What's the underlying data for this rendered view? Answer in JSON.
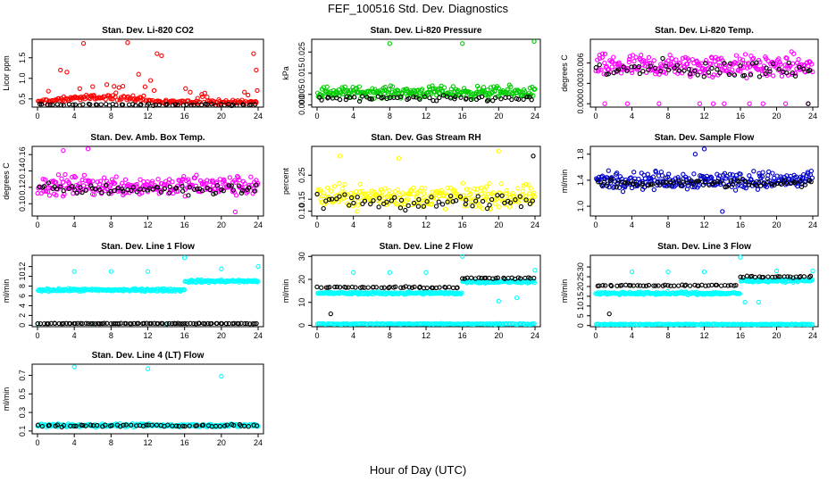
{
  "figure": {
    "title": "FEF_100516  Std. Dev. Diagnostics",
    "xlabel": "Hour of Day (UTC)"
  },
  "chart_data": [
    {
      "type": "scatter",
      "title": "Stan. Dev. Li-820 CO2",
      "ylabel": "Licor ppm",
      "xlim": [
        0,
        24
      ],
      "ylim": [
        0.3,
        1.95
      ],
      "xticks": [
        "0",
        "4",
        "8",
        "12",
        "16",
        "20",
        "24"
      ],
      "yticks": [
        {
          "v": 0.5,
          "t": "0.5"
        },
        {
          "v": 1.0,
          "t": "1.0"
        },
        {
          "v": 1.5,
          "t": "1.5"
        }
      ],
      "series": [
        {
          "color": "#ff0000",
          "base": 0.42,
          "spread": 0.08,
          "pattern": "hump",
          "density": 200,
          "outliers": [
            [
              5.0,
              1.85
            ],
            [
              9.8,
              1.87
            ],
            [
              13.5,
              1.55
            ],
            [
              23.5,
              1.6
            ],
            [
              2.5,
              1.2
            ],
            [
              3.2,
              1.15
            ],
            [
              11.0,
              1.1
            ],
            [
              12.3,
              0.95
            ],
            [
              6.0,
              0.8
            ],
            [
              4.6,
              0.75
            ],
            [
              23.8,
              1.2
            ],
            [
              13.0,
              1.6
            ]
          ]
        },
        {
          "color": "#000000",
          "base": 0.36,
          "spread": 0.03,
          "pattern": "flat",
          "density": 60,
          "outliers": []
        }
      ]
    },
    {
      "type": "scatter",
      "title": "Stan. Dev. Li-820 Pressure",
      "ylabel": "kPa",
      "xlim": [
        0,
        24
      ],
      "ylim": [
        -0.001,
        0.031
      ],
      "xticks": [
        "0",
        "4",
        "8",
        "12",
        "16",
        "20",
        "24"
      ],
      "yticks": [
        {
          "v": 0.0,
          "t": "0.000"
        },
        {
          "v": 0.005,
          "t": "0.005"
        },
        {
          "v": 0.015,
          "t": "0.015"
        },
        {
          "v": 0.025,
          "t": "0.025"
        }
      ],
      "series": [
        {
          "color": "#00cc00",
          "base": 0.006,
          "spread": 0.004,
          "pattern": "flat",
          "density": 260,
          "outliers": [
            [
              8.0,
              0.029
            ],
            [
              16.0,
              0.029
            ],
            [
              23.9,
              0.03
            ]
          ]
        },
        {
          "color": "#000000",
          "base": 0.003,
          "spread": 0.002,
          "pattern": "flat",
          "density": 60,
          "outliers": []
        }
      ]
    },
    {
      "type": "scatter",
      "title": "Stan. Dev. Li-820 Temp.",
      "ylabel": "degrees C",
      "xlim": [
        0,
        24
      ],
      "ylim": [
        -0.0005,
        0.0095
      ],
      "xticks": [
        "0",
        "4",
        "8",
        "12",
        "16",
        "20",
        "24"
      ],
      "yticks": [
        {
          "v": 0.0,
          "t": "0.000"
        },
        {
          "v": 0.003,
          "t": "0.003"
        },
        {
          "v": 0.006,
          "t": "0.006"
        }
      ],
      "series": [
        {
          "color": "#ff00ff",
          "base": 0.0055,
          "spread": 0.0025,
          "pattern": "flat",
          "density": 260,
          "outliers": [
            [
              1.0,
              0.0
            ],
            [
              3.5,
              0.0
            ],
            [
              7.0,
              0.0
            ],
            [
              11.5,
              0.0
            ],
            [
              13.0,
              0.0
            ],
            [
              14.2,
              0.0
            ],
            [
              17.0,
              0.0
            ],
            [
              18.5,
              0.0
            ],
            [
              21.0,
              0.0
            ],
            [
              23.5,
              0.0
            ]
          ]
        },
        {
          "color": "#000000",
          "base": 0.005,
          "spread": 0.002,
          "pattern": "flat",
          "density": 60,
          "outliers": [
            [
              23.5,
              0.0
            ]
          ]
        }
      ]
    },
    {
      "type": "scatter",
      "title": "Stan. Dev. Amb. Box Temp.",
      "ylabel": "degrees C",
      "xlim": [
        0,
        24
      ],
      "ylim": [
        0.085,
        0.17
      ],
      "xticks": [
        "0",
        "4",
        "8",
        "12",
        "16",
        "20",
        "24"
      ],
      "yticks": [
        {
          "v": 0.1,
          "t": "0.10"
        },
        {
          "v": 0.12,
          "t": "0.12"
        },
        {
          "v": 0.14,
          "t": "0.14"
        },
        {
          "v": 0.16,
          "t": "0.16"
        }
      ],
      "series": [
        {
          "color": "#ff00ff",
          "base": 0.122,
          "spread": 0.018,
          "pattern": "flat",
          "density": 260,
          "outliers": [
            [
              2.8,
              0.165
            ],
            [
              5.5,
              0.167
            ],
            [
              21.5,
              0.09
            ]
          ]
        },
        {
          "color": "#000000",
          "base": 0.118,
          "spread": 0.01,
          "pattern": "flat",
          "density": 70,
          "outliers": []
        }
      ]
    },
    {
      "type": "scatter",
      "title": "Stan. Dev. Gas Stream RH",
      "ylabel": "percent",
      "xlim": [
        0,
        24
      ],
      "ylim": [
        0.08,
        0.37
      ],
      "xticks": [
        "0",
        "4",
        "8",
        "12",
        "16",
        "20",
        "24"
      ],
      "yticks": [
        {
          "v": 0.1,
          "t": "0.10"
        },
        {
          "v": 0.15,
          "t": "0.15"
        },
        {
          "v": 0.25,
          "t": "0.25"
        }
      ],
      "series": [
        {
          "color": "#ffff00",
          "base": 0.16,
          "spread": 0.07,
          "pattern": "flat",
          "density": 260,
          "outliers": [
            [
              2.5,
              0.33
            ],
            [
              20.0,
              0.35
            ],
            [
              9.0,
              0.32
            ]
          ]
        },
        {
          "color": "#000000",
          "base": 0.14,
          "spread": 0.05,
          "pattern": "flat",
          "density": 60,
          "outliers": [
            [
              23.8,
              0.33
            ]
          ]
        }
      ]
    },
    {
      "type": "scatter",
      "title": "Stan. Dev. Sample Flow",
      "ylabel": "ml/min",
      "xlim": [
        0,
        24
      ],
      "ylim": [
        0.85,
        1.92
      ],
      "xticks": [
        "0",
        "4",
        "8",
        "12",
        "16",
        "20",
        "24"
      ],
      "yticks": [
        {
          "v": 1.0,
          "t": "1.0"
        },
        {
          "v": 1.4,
          "t": "1.4"
        },
        {
          "v": 1.8,
          "t": "1.8"
        }
      ],
      "series": [
        {
          "color": "#0000cc",
          "base": 1.4,
          "spread": 0.2,
          "pattern": "flat",
          "density": 260,
          "outliers": [
            [
              12.0,
              1.88
            ],
            [
              11.0,
              1.8
            ],
            [
              14.0,
              0.92
            ]
          ]
        },
        {
          "color": "#000000",
          "base": 1.35,
          "spread": 0.08,
          "pattern": "flat",
          "density": 70,
          "outliers": []
        }
      ]
    },
    {
      "type": "scatter",
      "title": "Stan. Dev. Line 1 Flow",
      "ylabel": "ml/min",
      "xlim": [
        0,
        24
      ],
      "ylim": [
        -0.3,
        14.3
      ],
      "xticks": [
        "0",
        "4",
        "8",
        "12",
        "16",
        "20",
        "24"
      ],
      "yticks": [
        {
          "v": 0,
          "t": "0"
        },
        {
          "v": 2,
          "t": "2"
        },
        {
          "v": 4,
          "t": "4"
        },
        {
          "v": 6,
          "t": "6"
        },
        {
          "v": 8,
          "t": "8"
        },
        {
          "v": 10,
          "t": "10"
        },
        {
          "v": 12,
          "t": "12"
        }
      ],
      "series": [
        {
          "color": "#00ffff",
          "base": 7.2,
          "spread": 0.4,
          "pattern": "stepUp",
          "stepAt": 16,
          "stepTo": 9.0,
          "density": 280,
          "outliers": [
            [
              4.0,
              11.0
            ],
            [
              8.0,
              11.0
            ],
            [
              12.0,
              11.0
            ],
            [
              16.0,
              13.8
            ],
            [
              20.0,
              11.5
            ],
            [
              24.0,
              12.0
            ],
            [
              0.0,
              0.3
            ],
            [
              6.0,
              0.3
            ],
            [
              14.0,
              0.3
            ]
          ]
        },
        {
          "color": "#000000",
          "base": 0.35,
          "spread": 0.08,
          "pattern": "flat",
          "density": 90,
          "outliers": []
        }
      ]
    },
    {
      "type": "scatter",
      "title": "Stan. Dev. Line 2 Flow",
      "ylabel": "ml/min",
      "xlim": [
        0,
        24
      ],
      "ylim": [
        -0.6,
        30.5
      ],
      "xticks": [
        "0",
        "4",
        "8",
        "12",
        "16",
        "20",
        "24"
      ],
      "yticks": [
        {
          "v": 0,
          "t": "0"
        },
        {
          "v": 10,
          "t": "10"
        },
        {
          "v": 20,
          "t": "20"
        },
        {
          "v": 30,
          "t": "30"
        }
      ],
      "series": [
        {
          "color": "#00ffff",
          "base": 14.0,
          "spread": 0.8,
          "pattern": "stepUp",
          "stepAt": 16,
          "stepTo": 19.0,
          "density": 260,
          "outliers": [
            [
              4.0,
              23.0
            ],
            [
              8.0,
              23.0
            ],
            [
              12.0,
              23.0
            ],
            [
              16.0,
              30.0
            ],
            [
              24.0,
              24.0
            ],
            [
              20.0,
              10.5
            ],
            [
              22.0,
              12.0
            ]
          ]
        },
        {
          "color": "#000000",
          "base": 16.5,
          "spread": 0.5,
          "pattern": "stepUp",
          "stepAt": 16,
          "stepTo": 20.5,
          "density": 70,
          "outliers": [
            [
              1.5,
              5.0
            ]
          ]
        },
        {
          "color": "#00ffff",
          "base": 0.6,
          "spread": 0.3,
          "pattern": "flat",
          "density": 200,
          "outliers": []
        }
      ]
    },
    {
      "type": "scatter",
      "title": "Stan. Dev. Line 3 Flow",
      "ylabel": "ml/min",
      "xlim": [
        0,
        24
      ],
      "ylim": [
        -0.6,
        36.0
      ],
      "xticks": [
        "0",
        "4",
        "8",
        "12",
        "16",
        "20",
        "24"
      ],
      "yticks": [
        {
          "v": 0,
          "t": "0"
        },
        {
          "v": 5,
          "t": "5"
        },
        {
          "v": 10,
          "t": "10"
        },
        {
          "v": 15,
          "t": "15"
        },
        {
          "v": 20,
          "t": "20"
        },
        {
          "v": 25,
          "t": "25"
        },
        {
          "v": 30,
          "t": "30"
        }
      ],
      "series": [
        {
          "color": "#00ffff",
          "base": 16.5,
          "spread": 1.0,
          "pattern": "stepUp",
          "stepAt": 16,
          "stepTo": 23.0,
          "density": 260,
          "outliers": [
            [
              4.0,
              27.5
            ],
            [
              8.0,
              27.5
            ],
            [
              12.0,
              27.5
            ],
            [
              16.0,
              35.0
            ],
            [
              20.0,
              28.0
            ],
            [
              24.0,
              28.0
            ],
            [
              16.5,
              12.0
            ],
            [
              18.0,
              12.0
            ]
          ]
        },
        {
          "color": "#000000",
          "base": 20.5,
          "spread": 0.5,
          "pattern": "stepUp",
          "stepAt": 16,
          "stepTo": 25.0,
          "density": 70,
          "outliers": [
            [
              1.5,
              6.0
            ]
          ]
        },
        {
          "color": "#00ffff",
          "base": 0.6,
          "spread": 0.3,
          "pattern": "flat",
          "density": 200,
          "outliers": []
        }
      ]
    },
    {
      "type": "scatter",
      "title": "Stan. Dev. Line 4 (LT) Flow",
      "ylabel": "ml/min",
      "xlim": [
        0,
        24
      ],
      "ylim": [
        0.07,
        0.82
      ],
      "xticks": [
        "0",
        "4",
        "8",
        "12",
        "16",
        "20",
        "24"
      ],
      "yticks": [
        {
          "v": 0.1,
          "t": "0.1"
        },
        {
          "v": 0.3,
          "t": "0.3"
        },
        {
          "v": 0.5,
          "t": "0.5"
        },
        {
          "v": 0.7,
          "t": "0.7"
        }
      ],
      "series": [
        {
          "color": "#00ffff",
          "base": 0.16,
          "spread": 0.025,
          "pattern": "flat",
          "density": 260,
          "outliers": [
            [
              4.0,
              0.79
            ],
            [
              12.0,
              0.77
            ],
            [
              20.0,
              0.69
            ]
          ]
        },
        {
          "color": "#000000",
          "base": 0.16,
          "spread": 0.02,
          "pattern": "flat",
          "density": 60,
          "outliers": []
        }
      ]
    }
  ]
}
